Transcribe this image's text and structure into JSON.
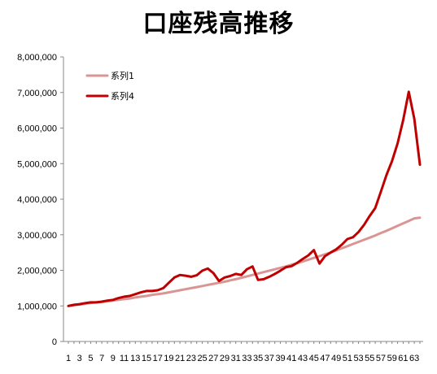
{
  "chart_data": {
    "type": "line",
    "title": "口座残高推移",
    "xlabel": "",
    "ylabel": "",
    "ylim": [
      0,
      8000000
    ],
    "yticks": [
      0,
      1000000,
      2000000,
      3000000,
      4000000,
      5000000,
      6000000,
      7000000,
      8000000
    ],
    "ytick_labels": [
      "0",
      "1,000,000",
      "2,000,000",
      "3,000,000",
      "4,000,000",
      "5,000,000",
      "6,000,000",
      "7,000,000",
      "8,000,000"
    ],
    "xtick_labels": [
      "1",
      "3",
      "5",
      "7",
      "9",
      "11",
      "13",
      "15",
      "17",
      "19",
      "21",
      "23",
      "25",
      "27",
      "29",
      "31",
      "33",
      "35",
      "37",
      "39",
      "41",
      "43",
      "45",
      "47",
      "49",
      "51",
      "53",
      "55",
      "57",
      "59",
      "61",
      "63"
    ],
    "x": [
      1,
      2,
      3,
      4,
      5,
      6,
      7,
      8,
      9,
      10,
      11,
      12,
      13,
      14,
      15,
      16,
      17,
      18,
      19,
      20,
      21,
      22,
      23,
      24,
      25,
      26,
      27,
      28,
      29,
      30,
      31,
      32,
      33,
      34,
      35,
      36,
      37,
      38,
      39,
      40,
      41,
      42,
      43,
      44,
      45,
      46,
      47,
      48,
      49,
      50,
      51,
      52,
      53,
      54,
      55,
      56,
      57,
      58,
      59,
      60,
      61,
      62,
      63,
      64
    ],
    "grid": false,
    "legend_position": "top-left",
    "series": [
      {
        "name": "系列1",
        "color": "#d99594",
        "values": [
          1000000,
          1020000,
          1040000,
          1060000,
          1080000,
          1100000,
          1110000,
          1130000,
          1150000,
          1170000,
          1190000,
          1210000,
          1240000,
          1260000,
          1280000,
          1310000,
          1330000,
          1350000,
          1380000,
          1410000,
          1440000,
          1470000,
          1500000,
          1530000,
          1560000,
          1590000,
          1620000,
          1650000,
          1680000,
          1720000,
          1750000,
          1790000,
          1830000,
          1870000,
          1910000,
          1950000,
          1990000,
          2030000,
          2070000,
          2110000,
          2160000,
          2200000,
          2250000,
          2300000,
          2350000,
          2400000,
          2450000,
          2500000,
          2560000,
          2620000,
          2680000,
          2740000,
          2800000,
          2860000,
          2920000,
          2980000,
          3050000,
          3110000,
          3180000,
          3250000,
          3320000,
          3390000,
          3460000,
          3480000
        ]
      },
      {
        "name": "系列4",
        "color": "#c00000",
        "values": [
          1000000,
          1030000,
          1050000,
          1080000,
          1100000,
          1100000,
          1120000,
          1150000,
          1170000,
          1220000,
          1260000,
          1280000,
          1330000,
          1380000,
          1420000,
          1420000,
          1440000,
          1500000,
          1650000,
          1800000,
          1870000,
          1850000,
          1820000,
          1860000,
          1990000,
          2050000,
          1920000,
          1700000,
          1800000,
          1840000,
          1900000,
          1870000,
          2030000,
          2110000,
          1730000,
          1750000,
          1820000,
          1900000,
          1990000,
          2090000,
          2120000,
          2210000,
          2320000,
          2420000,
          2570000,
          2190000,
          2400000,
          2500000,
          2590000,
          2720000,
          2880000,
          2930000,
          3080000,
          3280000,
          3530000,
          3750000,
          4210000,
          4680000,
          5070000,
          5570000,
          6220000,
          7020000,
          6260000,
          4970000
        ]
      }
    ]
  }
}
